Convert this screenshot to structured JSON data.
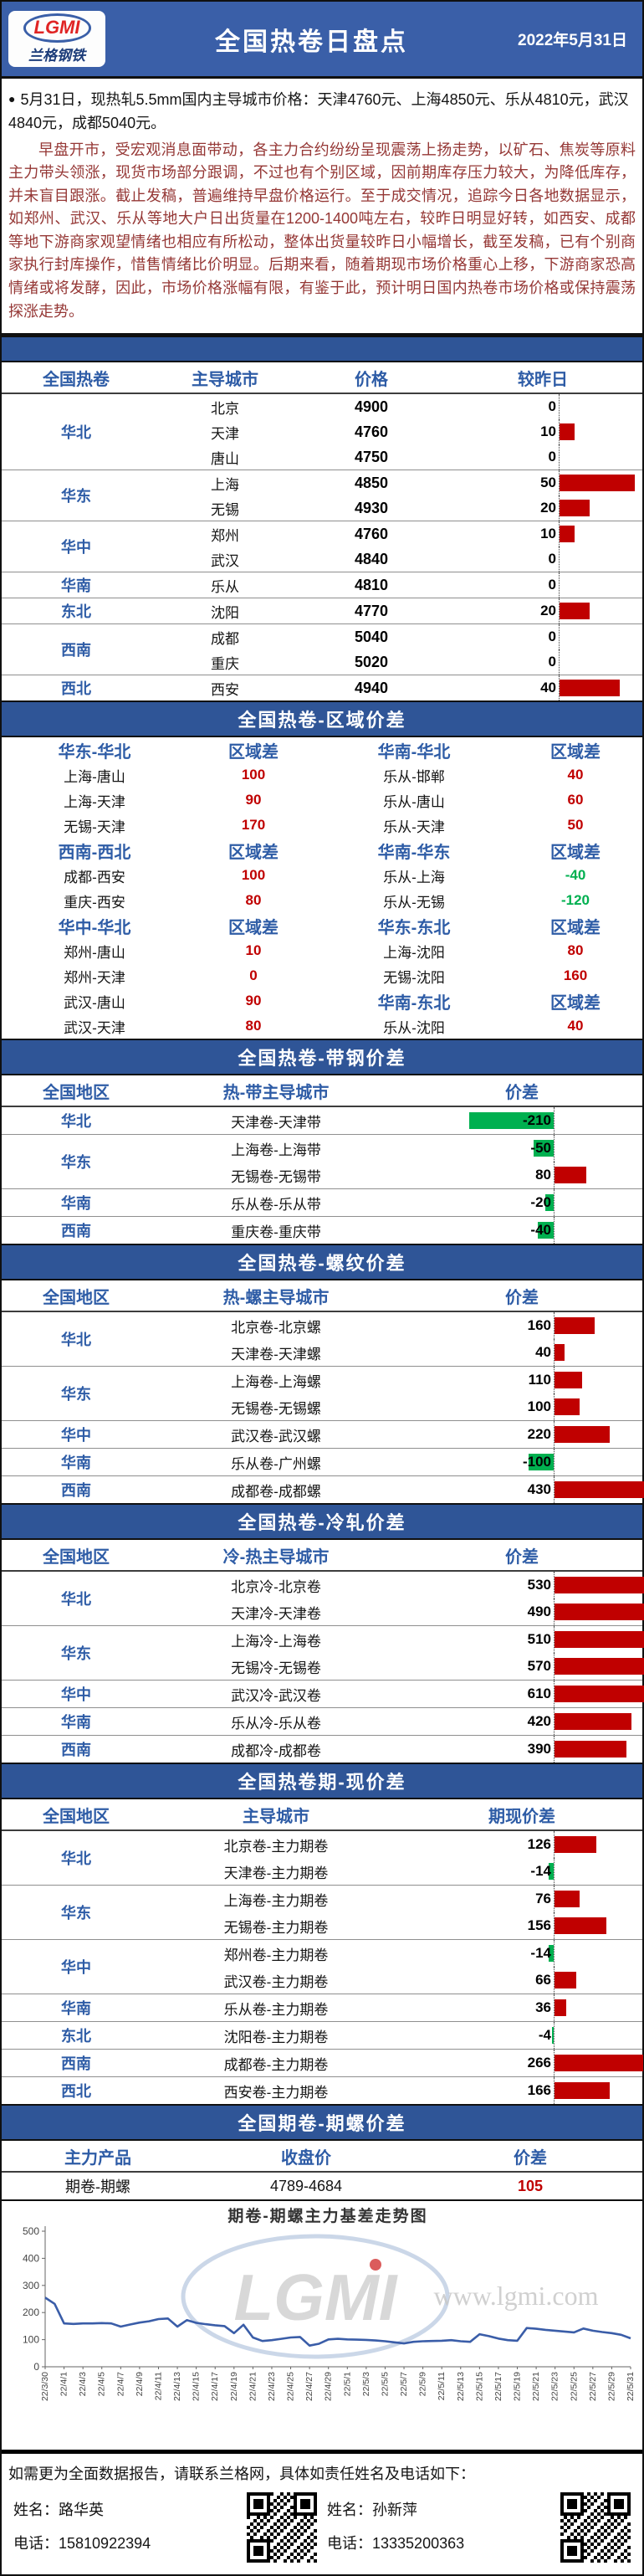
{
  "header": {
    "logo_text": "LGMI",
    "logo_sub": "兰格钢铁",
    "title": "全国热卷日盘点",
    "date": "2022年5月31日"
  },
  "summary_bullet": "5月31日，现热轧5.5mm国内主导城市价格：天津4760元、上海4850元、乐从4810元，武汉4840元，成都5040元。",
  "commentary": "早盘开市，受宏观消息面带动，各主力合约纷纷呈现震荡上扬走势，以矿石、焦炭等原料主力带头领涨，现货市场部分跟调，不过也有个别区域，因前期库存压力较大，为降低库存，并未盲目跟涨。截止发稿，普遍维持早盘价格运行。至于成交情况，追踪今日各地数据显示，如郑州、武汉、乐从等地大户日出货量在1200-1400吨左右，较昨日明显好转，如西安、成都等地下游商家观望情绪也相应有所松动，整体出货量较昨日小幅增长，截至发稿，已有个别商家执行封库操作，惜售情绪比价明显。后期来看，随着期现市场价格重心上移，下游商家恐高情绪或将发酵，因此，市场价格涨幅有限，有鉴于此，预计明日国内热卷市场价格或保持震荡探涨走势。",
  "colors": {
    "banner_blue": "#3a5fa8",
    "band_blue": "#2f5597",
    "header_text_blue": "#2e5ca6",
    "positive_red": "#c00000",
    "negative_green": "#00b050",
    "commentary_maroon": "#953735",
    "chart_line_blue": "#3a5da8"
  },
  "price_table": {
    "headers": [
      "全国热卷",
      "主导城市",
      "价格",
      "较昨日"
    ],
    "rows": [
      {
        "region": "华北",
        "city": "北京",
        "price": "4900",
        "change": 0
      },
      {
        "region": "华北",
        "city": "天津",
        "price": "4760",
        "change": 10
      },
      {
        "region": "华北",
        "city": "唐山",
        "price": "4750",
        "change": 0
      },
      {
        "region": "华东",
        "city": "上海",
        "price": "4850",
        "change": 50
      },
      {
        "region": "华东",
        "city": "无锡",
        "price": "4930",
        "change": 20
      },
      {
        "region": "华中",
        "city": "郑州",
        "price": "4760",
        "change": 10
      },
      {
        "region": "华中",
        "city": "武汉",
        "price": "4840",
        "change": 0
      },
      {
        "region": "华南",
        "city": "乐从",
        "price": "4810",
        "change": 0
      },
      {
        "region": "东北",
        "city": "沈阳",
        "price": "4770",
        "change": 20
      },
      {
        "region": "西南",
        "city": "成都",
        "price": "5040",
        "change": 0
      },
      {
        "region": "西南",
        "city": "重庆",
        "price": "5020",
        "change": 0
      },
      {
        "region": "西北",
        "city": "西安",
        "price": "4940",
        "change": 40
      }
    ]
  },
  "region_diff": {
    "title": "全国热卷-区域价差",
    "value_header": "区域差",
    "rows": [
      {
        "lh": true,
        "rh": true,
        "c": [
          "华东-华北",
          "区域差",
          "华南-华北",
          "区域差"
        ]
      },
      {
        "c": [
          "上海-唐山",
          "100",
          "乐从-邯郸",
          "40"
        ]
      },
      {
        "c": [
          "上海-天津",
          "90",
          "乐从-唐山",
          "60"
        ]
      },
      {
        "c": [
          "无锡-天津",
          "170",
          "乐从-天津",
          "50"
        ]
      },
      {
        "lh": true,
        "rh": true,
        "c": [
          "西南-西北",
          "区域差",
          "华南-华东",
          "区域差"
        ]
      },
      {
        "c": [
          "成都-西安",
          "100",
          "乐从-上海",
          "-40"
        ]
      },
      {
        "c": [
          "重庆-西安",
          "80",
          "乐从-无锡",
          "-120"
        ]
      },
      {
        "lh": true,
        "rh": true,
        "c": [
          "华中-华北",
          "区域差",
          "华东-东北",
          "区域差"
        ]
      },
      {
        "c": [
          "郑州-唐山",
          "10",
          "上海-沈阳",
          "80"
        ]
      },
      {
        "c": [
          "郑州-天津",
          "0",
          "无锡-沈阳",
          "160"
        ]
      },
      {
        "rh": true,
        "c": [
          "武汉-唐山",
          "90",
          "华南-东北",
          "区域差"
        ]
      },
      {
        "c": [
          "武汉-天津",
          "80",
          "乐从-沈阳",
          "40"
        ]
      }
    ]
  },
  "strip_diff": {
    "title": "全国热卷-带钢价差",
    "headers": [
      "全国地区",
      "热-带主导城市",
      "价差"
    ],
    "rows": [
      {
        "region": "华北",
        "pair": "天津卷-天津带",
        "diff": -210
      },
      {
        "region": "华东",
        "pair": "上海卷-上海带",
        "diff": -50
      },
      {
        "region": "华东",
        "pair": "无锡卷-无锡带",
        "diff": 80
      },
      {
        "region": "华南",
        "pair": "乐从卷-乐从带",
        "diff": -20
      },
      {
        "region": "西南",
        "pair": "重庆卷-重庆带",
        "diff": -40
      }
    ]
  },
  "rebar_diff": {
    "title": "全国热卷-螺纹价差",
    "headers": [
      "全国地区",
      "热-螺主导城市",
      "价差"
    ],
    "rows": [
      {
        "region": "华北",
        "pair": "北京卷-北京螺",
        "diff": 160
      },
      {
        "region": "华北",
        "pair": "天津卷-天津螺",
        "diff": 40
      },
      {
        "region": "华东",
        "pair": "上海卷-上海螺",
        "diff": 110
      },
      {
        "region": "华东",
        "pair": "无锡卷-无锡螺",
        "diff": 100
      },
      {
        "region": "华中",
        "pair": "武汉卷-武汉螺",
        "diff": 220
      },
      {
        "region": "华南",
        "pair": "乐从卷-广州螺",
        "diff": -100
      },
      {
        "region": "西南",
        "pair": "成都卷-成都螺",
        "diff": 430
      }
    ]
  },
  "cold_diff": {
    "title": "全国热卷-冷轧价差",
    "headers": [
      "全国地区",
      "冷-热主导城市",
      "价差"
    ],
    "rows": [
      {
        "region": "华北",
        "pair": "北京冷-北京卷",
        "diff": 530
      },
      {
        "region": "华北",
        "pair": "天津冷-天津卷",
        "diff": 490
      },
      {
        "region": "华东",
        "pair": "上海冷-上海卷",
        "diff": 510
      },
      {
        "region": "华东",
        "pair": "无锡冷-无锡卷",
        "diff": 570
      },
      {
        "region": "华中",
        "pair": "武汉冷-武汉卷",
        "diff": 610
      },
      {
        "region": "华南",
        "pair": "乐从冷-乐从卷",
        "diff": 420
      },
      {
        "region": "西南",
        "pair": "成都冷-成都卷",
        "diff": 390
      }
    ]
  },
  "basis_diff": {
    "title": "全国热卷期-现价差",
    "headers": [
      "全国地区",
      "主导城市",
      "期现价差"
    ],
    "rows": [
      {
        "region": "华北",
        "pair": "北京卷-主力期卷",
        "diff": 126
      },
      {
        "region": "华北",
        "pair": "天津卷-主力期卷",
        "diff": -14
      },
      {
        "region": "华东",
        "pair": "上海卷-主力期卷",
        "diff": 76
      },
      {
        "region": "华东",
        "pair": "无锡卷-主力期卷",
        "diff": 156
      },
      {
        "region": "华中",
        "pair": "郑州卷-主力期卷",
        "diff": -14
      },
      {
        "region": "华中",
        "pair": "武汉卷-主力期卷",
        "diff": 66
      },
      {
        "region": "华南",
        "pair": "乐从卷-主力期卷",
        "diff": 36
      },
      {
        "region": "东北",
        "pair": "沈阳卷-主力期卷",
        "diff": -4
      },
      {
        "region": "西南",
        "pair": "成都卷-主力期卷",
        "diff": 266
      },
      {
        "region": "西北",
        "pair": "西安卷-主力期卷",
        "diff": 166
      }
    ]
  },
  "futures_diff": {
    "title": "全国期卷-期螺价差",
    "headers": [
      "主力产品",
      "收盘价",
      "价差"
    ],
    "row": {
      "product": "期卷-期螺",
      "close": "4789-4684",
      "diff": "105"
    }
  },
  "chart_data": {
    "type": "line",
    "title": "期卷-期螺主力基差走势图",
    "watermark_logo": "LGMI",
    "watermark_url": "www.lgmi.com",
    "ylim": [
      0,
      500
    ],
    "yticks": [
      0,
      100,
      200,
      300,
      400,
      500
    ],
    "x": [
      "22/3/30",
      "22/3/31",
      "22/4/1",
      "22/4/2",
      "22/4/3",
      "22/4/4",
      "22/4/5",
      "22/4/6",
      "22/4/7",
      "22/4/8",
      "22/4/9",
      "22/4/10",
      "22/4/11",
      "22/4/12",
      "22/4/13",
      "22/4/14",
      "22/4/15",
      "22/4/16",
      "22/4/17",
      "22/4/18",
      "22/4/19",
      "22/4/20",
      "22/4/21",
      "22/4/22",
      "22/4/23",
      "22/4/24",
      "22/4/25",
      "22/4/26",
      "22/4/27",
      "22/4/28",
      "22/4/29",
      "22/4/30",
      "22/5/1",
      "22/5/2",
      "22/5/3",
      "22/5/4",
      "22/5/5",
      "22/5/6",
      "22/5/7",
      "22/5/8",
      "22/5/9",
      "22/5/10",
      "22/5/11",
      "22/5/12",
      "22/5/13",
      "22/5/14",
      "22/5/15",
      "22/5/16",
      "22/5/17",
      "22/5/18",
      "22/5/19",
      "22/5/20",
      "22/5/21",
      "22/5/22",
      "22/5/23",
      "22/5/24",
      "22/5/25",
      "22/5/26",
      "22/5/27",
      "22/5/28",
      "22/5/29",
      "22/5/30",
      "22/5/31"
    ],
    "values": [
      255,
      232,
      160,
      158,
      160,
      160,
      161,
      160,
      148,
      156,
      163,
      168,
      176,
      178,
      148,
      172,
      162,
      157,
      153,
      150,
      124,
      155,
      108,
      95,
      98,
      103,
      108,
      110,
      78,
      85,
      101,
      103,
      101,
      100,
      99,
      97,
      94,
      90,
      86,
      92,
      94,
      95,
      96,
      98,
      94,
      92,
      120,
      113,
      104,
      98,
      96,
      143,
      140,
      136,
      133,
      130,
      127,
      141,
      133,
      128,
      124,
      118,
      105
    ],
    "legend": [],
    "grid": false
  },
  "footer": {
    "note": "如需更为全面数据报告，请联系兰格网，具体如责任姓名及电话如下：",
    "contacts": [
      {
        "name_label": "姓名：",
        "name": "路华英",
        "phone_label": "电话：",
        "phone": "15810922394"
      },
      {
        "name_label": "姓名：",
        "name": "孙新萍",
        "phone_label": "电话：",
        "phone": "13335200363"
      }
    ]
  }
}
